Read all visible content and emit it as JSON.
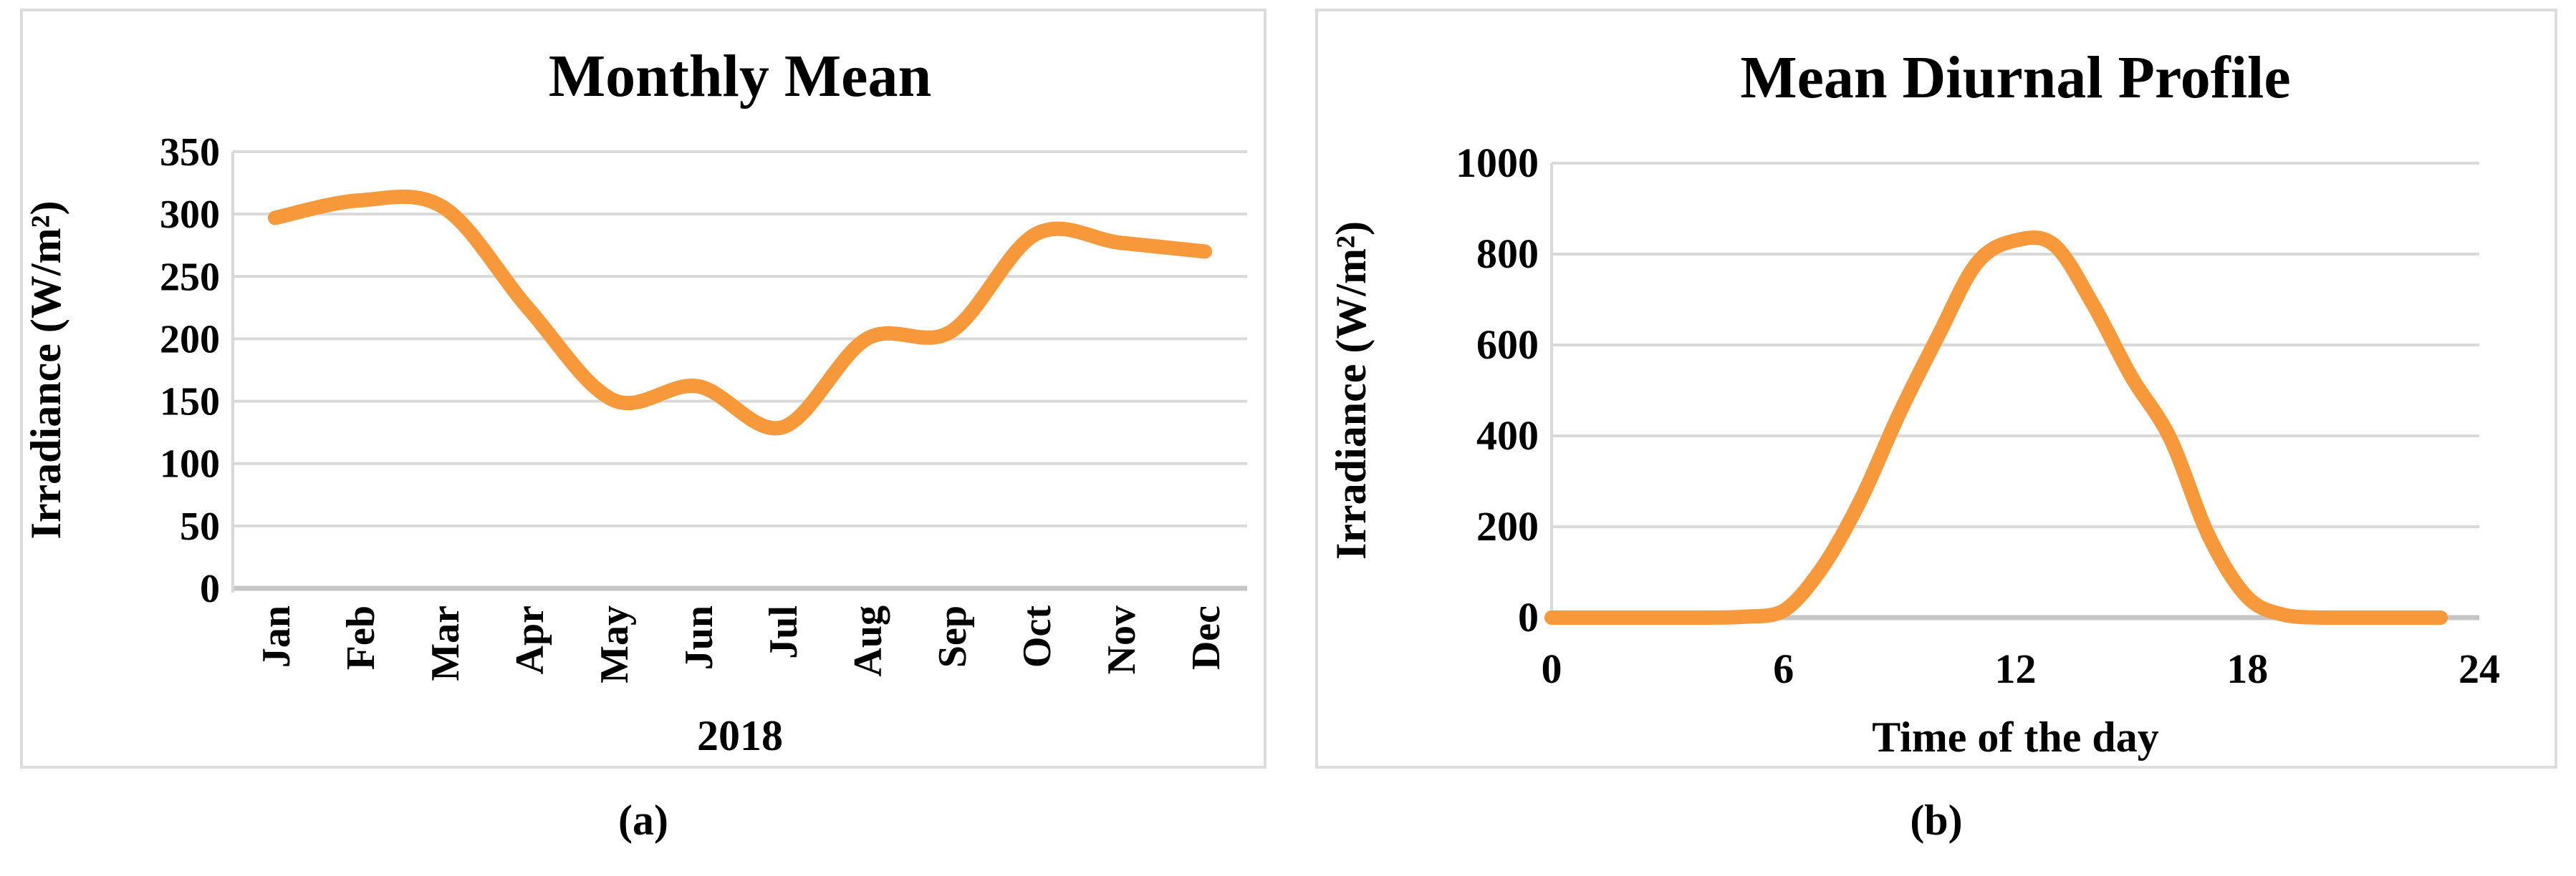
{
  "figure": {
    "captions": {
      "a": "(a)",
      "b": "(b)"
    },
    "colors": {
      "line": "#F7983A",
      "gridline": "#D9D9D9",
      "baseline": "#C6C6C6",
      "axis_line": "#D9D9D9",
      "text": "#000000",
      "panel_border": "#DCDCDC",
      "background": "#FFFFFF"
    }
  },
  "chart_data": [
    {
      "id": "monthly-mean",
      "type": "line",
      "title": "Monthly Mean",
      "xlabel": "2018",
      "ylabel": "Irradiance (W/m²)",
      "categories": [
        "Jan",
        "Feb",
        "Mar",
        "Apr",
        "May",
        "Jun",
        "Jul",
        "Aug",
        "Sep",
        "Oct",
        "Nov",
        "Dec"
      ],
      "values": [
        297,
        311,
        305,
        224,
        151,
        162,
        129,
        200,
        206,
        284,
        277,
        270
      ],
      "ylim": [
        0,
        350
      ],
      "ytick_step": 50,
      "grid": "horizontal",
      "legend": "none",
      "smooth": true,
      "x_tick_label_rotation": -90
    },
    {
      "id": "mean-diurnal-profile",
      "type": "line",
      "title": "Mean Diurnal Profile",
      "xlabel": "Time of the day",
      "ylabel": "Irradiance (W/m²)",
      "x": [
        0,
        1,
        2,
        3,
        4,
        5,
        6,
        7,
        8,
        9,
        10,
        11,
        12,
        13,
        14,
        15,
        16,
        17,
        18,
        19,
        20,
        21,
        22,
        23
      ],
      "values": [
        0,
        0,
        0,
        0,
        0,
        2,
        15,
        110,
        260,
        450,
        620,
        780,
        830,
        820,
        690,
        530,
        395,
        180,
        45,
        5,
        0,
        0,
        0,
        0
      ],
      "xlim": [
        0,
        24
      ],
      "xticks": [
        0,
        6,
        12,
        18,
        24
      ],
      "ylim": [
        0,
        1000
      ],
      "ytick_step": 200,
      "grid": "horizontal",
      "legend": "none",
      "smooth": true
    }
  ]
}
